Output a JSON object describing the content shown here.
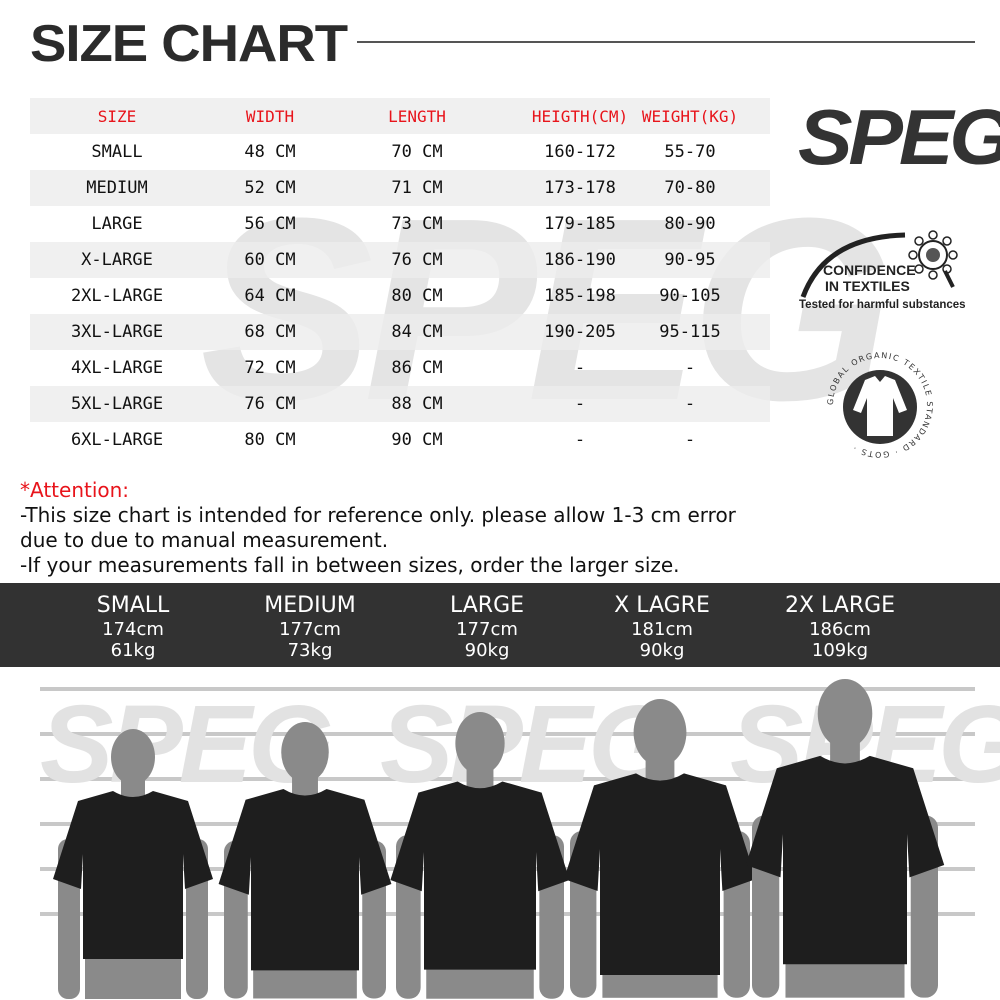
{
  "title": "SIZE CHART",
  "brand": "SPEG",
  "table": {
    "headers": [
      "SIZE",
      "WIDTH",
      "LENGTH",
      "HEIGTH(CM)",
      "WEIGHT(KG)"
    ],
    "rows": [
      [
        "SMALL",
        "48 CM",
        "70 CM",
        "160-172",
        "55-70"
      ],
      [
        "MEDIUM",
        "52 CM",
        "71 CM",
        "173-178",
        "70-80"
      ],
      [
        "LARGE",
        "56 CM",
        "73 CM",
        "179-185",
        "80-90"
      ],
      [
        "X-LARGE",
        "60 CM",
        "76 CM",
        "186-190",
        "90-95"
      ],
      [
        "2XL-LARGE",
        "64 CM",
        "80 CM",
        "185-198",
        "90-105"
      ],
      [
        "3XL-LARGE",
        "68 CM",
        "84 CM",
        "190-205",
        "95-115"
      ],
      [
        "4XL-LARGE",
        "72 CM",
        "86 CM",
        "-",
        "-"
      ],
      [
        "5XL-LARGE",
        "76 CM",
        "88 CM",
        "-",
        "-"
      ],
      [
        "6XL-LARGE",
        "80 CM",
        "90 CM",
        "-",
        "-"
      ]
    ]
  },
  "badges": {
    "oeko_line1": "CONFIDENCE",
    "oeko_line2": "IN TEXTILES",
    "oeko_line3": "Tested for harmful substances",
    "gots_ring": "GLOBAL ORGANIC TEXTILE STANDARD · GOTS ·"
  },
  "attention": {
    "heading": "*Attention:",
    "lines": [
      "-This size chart is intended for reference only. please allow 1-3 cm error",
      "due to due to manual measurement.",
      "-If your measurements fall in between sizes, order the larger size."
    ]
  },
  "models": [
    {
      "size": "SMALL",
      "height": "174cm",
      "weight": "61kg"
    },
    {
      "size": "MEDIUM",
      "height": "177cm",
      "weight": "73kg"
    },
    {
      "size": "LARGE",
      "height": "177cm",
      "weight": "90kg"
    },
    {
      "size": "X LAGRE",
      "height": "181cm",
      "weight": "90kg"
    },
    {
      "size": "2X LARGE",
      "height": "186cm",
      "weight": "109kg"
    }
  ],
  "colors": {
    "header_text": "#e8141b",
    "band": "#323232",
    "shirt": "#1e1e1e",
    "silhouette": "#8a8a8a"
  }
}
